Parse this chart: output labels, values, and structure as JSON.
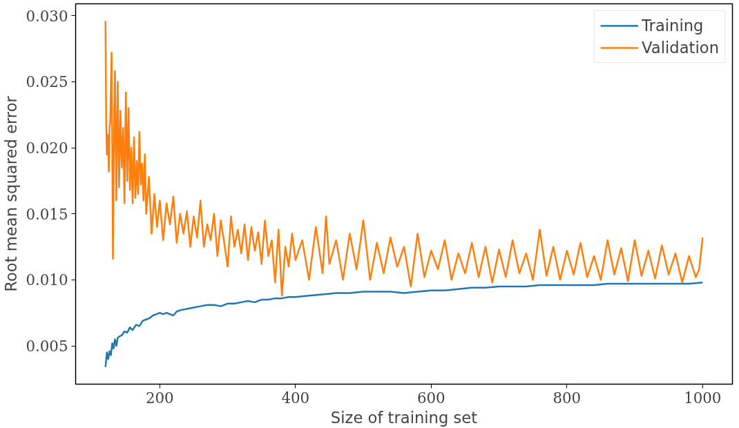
{
  "chart_data": {
    "type": "line",
    "xlabel": "Size of training set",
    "ylabel": "Root mean squared error",
    "xlim": [
      76,
      1044
    ],
    "ylim": [
      0.0021,
      0.0309
    ],
    "xticks": [
      200,
      400,
      600,
      800,
      1000
    ],
    "yticks": [
      {
        "value": 0.005,
        "label": "0.005"
      },
      {
        "value": 0.01,
        "label": "0.010"
      },
      {
        "value": 0.015,
        "label": "0.015"
      },
      {
        "value": 0.02,
        "label": "0.020"
      },
      {
        "value": 0.025,
        "label": "0.025"
      },
      {
        "value": 0.03,
        "label": "0.030"
      }
    ],
    "grid": false,
    "legend": "top right",
    "marker": "none",
    "line_style": "solid",
    "series": [
      {
        "name": "Training",
        "color": "#1f77b4",
        "x": [
          120,
          122,
          124,
          126,
          128,
          130,
          132,
          134,
          136,
          138,
          140,
          144,
          148,
          152,
          156,
          160,
          165,
          170,
          175,
          180,
          185,
          190,
          195,
          200,
          205,
          210,
          215,
          220,
          225,
          230,
          240,
          250,
          260,
          270,
          280,
          290,
          300,
          310,
          320,
          330,
          340,
          350,
          360,
          370,
          380,
          390,
          400,
          420,
          440,
          460,
          480,
          500,
          520,
          540,
          560,
          580,
          600,
          620,
          640,
          660,
          680,
          700,
          720,
          740,
          760,
          780,
          800,
          820,
          840,
          860,
          880,
          900,
          920,
          940,
          960,
          980,
          1000
        ],
        "values": [
          0.0034,
          0.0045,
          0.004,
          0.0046,
          0.0043,
          0.0052,
          0.0048,
          0.0055,
          0.005,
          0.0056,
          0.0057,
          0.0058,
          0.0061,
          0.006,
          0.0064,
          0.0062,
          0.0066,
          0.0065,
          0.0069,
          0.007,
          0.0071,
          0.0073,
          0.0074,
          0.0075,
          0.0074,
          0.0075,
          0.0074,
          0.0073,
          0.0076,
          0.0077,
          0.0078,
          0.0079,
          0.008,
          0.0081,
          0.0081,
          0.008,
          0.0082,
          0.0082,
          0.0083,
          0.0084,
          0.0083,
          0.0085,
          0.0085,
          0.0086,
          0.0086,
          0.0087,
          0.0087,
          0.0088,
          0.0089,
          0.009,
          0.009,
          0.0091,
          0.0091,
          0.0091,
          0.009,
          0.0091,
          0.0092,
          0.0092,
          0.0093,
          0.0094,
          0.0094,
          0.0095,
          0.0095,
          0.0095,
          0.0096,
          0.0096,
          0.0096,
          0.0096,
          0.0096,
          0.0097,
          0.0097,
          0.0097,
          0.0097,
          0.0097,
          0.0097,
          0.0097,
          0.0098
        ]
      },
      {
        "name": "Validation",
        "color": "#ff7f0e",
        "x": [
          120,
          121,
          122,
          123,
          124,
          125,
          126,
          127,
          129,
          131,
          133,
          134,
          136,
          138,
          140,
          142,
          144,
          146,
          148,
          150,
          152,
          154,
          156,
          158,
          160,
          162,
          164,
          166,
          168,
          170,
          172,
          174,
          176,
          178,
          180,
          184,
          188,
          192,
          196,
          200,
          205,
          210,
          215,
          220,
          225,
          230,
          235,
          240,
          245,
          250,
          255,
          260,
          265,
          270,
          275,
          280,
          285,
          290,
          295,
          300,
          305,
          310,
          315,
          320,
          325,
          330,
          335,
          340,
          345,
          350,
          355,
          360,
          365,
          370,
          375,
          380,
          385,
          390,
          395,
          400,
          410,
          420,
          430,
          440,
          445,
          450,
          460,
          470,
          480,
          490,
          500,
          510,
          520,
          530,
          540,
          550,
          560,
          570,
          580,
          590,
          600,
          610,
          620,
          630,
          640,
          650,
          660,
          670,
          680,
          690,
          700,
          710,
          720,
          730,
          740,
          750,
          760,
          770,
          780,
          790,
          800,
          810,
          820,
          830,
          840,
          850,
          860,
          870,
          880,
          890,
          900,
          910,
          920,
          930,
          940,
          950,
          960,
          970,
          980,
          990,
          995,
          1000
        ],
        "values": [
          0.0296,
          0.022,
          0.0195,
          0.021,
          0.02,
          0.0182,
          0.0215,
          0.022,
          0.0272,
          0.0116,
          0.023,
          0.0258,
          0.016,
          0.025,
          0.017,
          0.0228,
          0.0185,
          0.0215,
          0.0158,
          0.0242,
          0.0175,
          0.023,
          0.0168,
          0.02,
          0.0158,
          0.0208,
          0.0162,
          0.019,
          0.0165,
          0.0212,
          0.0172,
          0.0188,
          0.016,
          0.0195,
          0.015,
          0.0178,
          0.0135,
          0.0165,
          0.014,
          0.016,
          0.013,
          0.0158,
          0.0142,
          0.0163,
          0.0128,
          0.015,
          0.0135,
          0.0152,
          0.0125,
          0.0148,
          0.0132,
          0.016,
          0.0125,
          0.0142,
          0.013,
          0.015,
          0.0118,
          0.0145,
          0.0128,
          0.011,
          0.0148,
          0.0125,
          0.0138,
          0.012,
          0.0142,
          0.0115,
          0.014,
          0.0122,
          0.0136,
          0.0112,
          0.0145,
          0.0118,
          0.013,
          0.0098,
          0.0138,
          0.0088,
          0.0125,
          0.011,
          0.0135,
          0.0115,
          0.013,
          0.01,
          0.014,
          0.0105,
          0.0148,
          0.0112,
          0.013,
          0.01,
          0.0135,
          0.0108,
          0.0145,
          0.01,
          0.0128,
          0.0105,
          0.0132,
          0.011,
          0.0125,
          0.0095,
          0.0135,
          0.0102,
          0.0122,
          0.0108,
          0.013,
          0.01,
          0.012,
          0.0105,
          0.0128,
          0.0102,
          0.0125,
          0.0098,
          0.0123,
          0.0102,
          0.013,
          0.0105,
          0.012,
          0.01,
          0.0138,
          0.0103,
          0.0125,
          0.01,
          0.0122,
          0.0104,
          0.0128,
          0.0102,
          0.0118,
          0.01,
          0.013,
          0.0104,
          0.0124,
          0.0099,
          0.013,
          0.0103,
          0.0122,
          0.0101,
          0.0126,
          0.0104,
          0.012,
          0.0098,
          0.0118,
          0.0102,
          0.0108,
          0.0132
        ]
      }
    ]
  }
}
